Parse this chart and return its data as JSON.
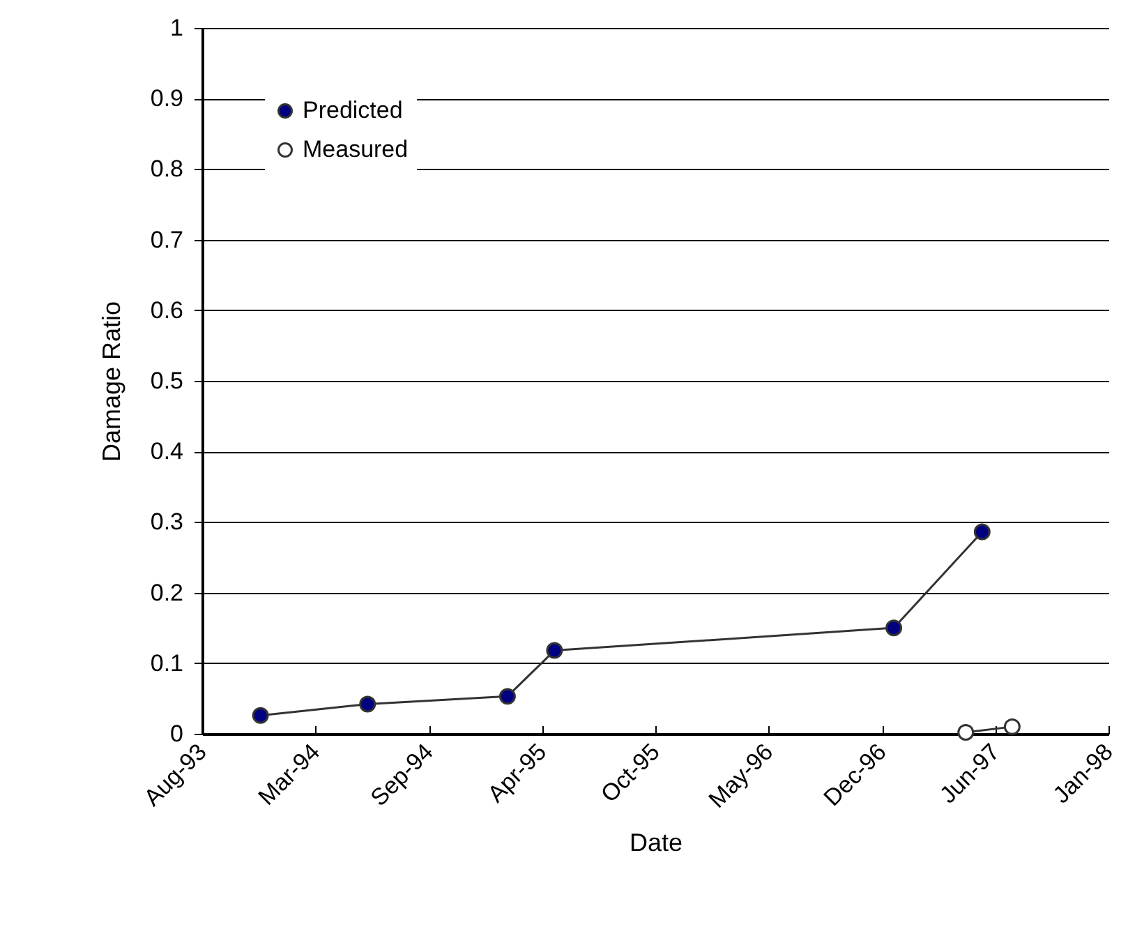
{
  "chart_data": {
    "type": "line",
    "xlabel": "Date",
    "ylabel": "Damage Ratio",
    "xlim": [
      "1993-08-19",
      "1998-01-05"
    ],
    "xticks": [
      {
        "value": "1993-08-19",
        "label": "Aug-93"
      },
      {
        "value": "1994-03-07",
        "label": "Mar-94"
      },
      {
        "value": "1994-09-23",
        "label": "Sep-94"
      },
      {
        "value": "1995-04-11",
        "label": "Apr-95"
      },
      {
        "value": "1995-10-28",
        "label": "Oct-95"
      },
      {
        "value": "1996-05-15",
        "label": "May-96"
      },
      {
        "value": "1996-12-01",
        "label": "Dec-96"
      },
      {
        "value": "1997-06-19",
        "label": "Jun-97"
      },
      {
        "value": "1998-01-05",
        "label": "Jan-98"
      }
    ],
    "ylim": [
      0,
      1
    ],
    "yticks": [
      0,
      0.1,
      0.2,
      0.3,
      0.4,
      0.5,
      0.6,
      0.7,
      0.8,
      0.9,
      1
    ],
    "series": [
      {
        "name": "Predicted",
        "color": "#000080",
        "x": [
          "1993-11-30",
          "1994-06-07",
          "1995-02-09",
          "1995-05-03",
          "1996-12-22",
          "1997-05-27"
        ],
        "values": [
          0.026,
          0.042,
          0.053,
          0.118,
          0.15,
          0.286
        ]
      },
      {
        "name": "Measured",
        "color": "#ffffff",
        "x": [
          "1997-04-28",
          "1997-07-19"
        ],
        "values": [
          0.002,
          0.01
        ]
      }
    ],
    "grid": "y",
    "legend": "top left",
    "marker": "circle",
    "line_style": "solid"
  }
}
